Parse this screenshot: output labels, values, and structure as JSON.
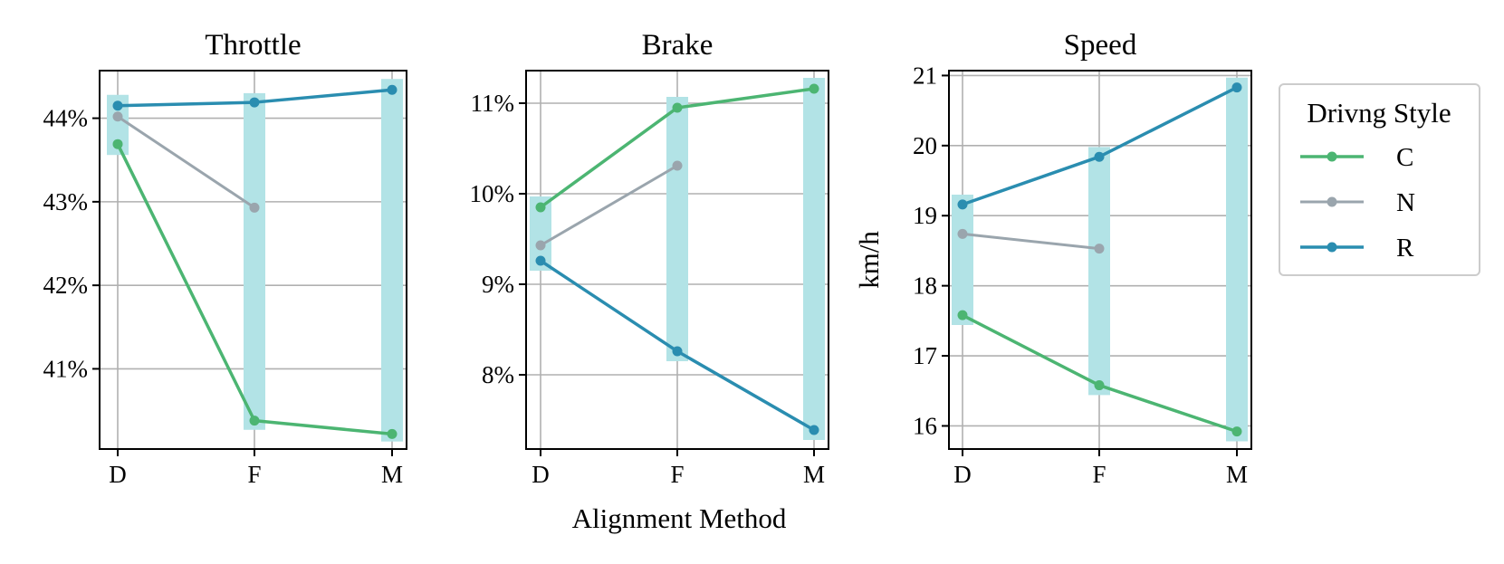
{
  "chart_data": {
    "type": "line",
    "xlabel": "Alignment Method",
    "categories": [
      "D",
      "F",
      "M"
    ],
    "legend": {
      "title": "Drivng Style",
      "placement": "right"
    },
    "series_colors": {
      "C": "#4cb572",
      "N": "#9aa5ad",
      "R": "#2a8db0"
    },
    "band_color": "#b2e3e6",
    "panels": [
      {
        "title": "Throttle",
        "ylabel": "",
        "ylim": [
          40.04,
          44.57
        ],
        "yticks": [
          41,
          42,
          43,
          44
        ],
        "ytick_labels": [
          "41%",
          "42%",
          "43%",
          "44%"
        ],
        "series": [
          {
            "name": "C",
            "values": [
              43.69,
              40.38,
              40.22
            ]
          },
          {
            "name": "N",
            "values": [
              44.02,
              42.93,
              null
            ]
          },
          {
            "name": "R",
            "values": [
              44.15,
              44.19,
              44.34
            ]
          }
        ],
        "bands": [
          [
            43.56,
            44.28
          ],
          [
            40.27,
            44.3
          ],
          [
            40.13,
            44.47
          ]
        ]
      },
      {
        "title": "Brake",
        "ylabel": "",
        "ylim": [
          7.18,
          11.36
        ],
        "yticks": [
          8,
          9,
          10,
          11
        ],
        "ytick_labels": [
          "8%",
          "9%",
          "10%",
          "11%"
        ],
        "series": [
          {
            "name": "C",
            "values": [
              9.85,
              10.95,
              11.16
            ]
          },
          {
            "name": "N",
            "values": [
              9.43,
              10.31,
              null
            ]
          },
          {
            "name": "R",
            "values": [
              9.26,
              8.26,
              7.39
            ]
          }
        ],
        "bands": [
          [
            9.15,
            9.97
          ],
          [
            8.15,
            11.07
          ],
          [
            7.28,
            11.28
          ]
        ]
      },
      {
        "title": "Speed",
        "ylabel": "km/h",
        "ylim": [
          15.67,
          21.07
        ],
        "yticks": [
          16,
          17,
          18,
          19,
          20,
          21
        ],
        "ytick_labels": [
          "16",
          "17",
          "18",
          "19",
          "20",
          "21"
        ],
        "series": [
          {
            "name": "C",
            "values": [
              17.58,
              16.58,
              15.92
            ]
          },
          {
            "name": "N",
            "values": [
              18.74,
              18.53,
              null
            ]
          },
          {
            "name": "R",
            "values": [
              19.16,
              19.84,
              20.83
            ]
          }
        ],
        "bands": [
          [
            17.44,
            19.3
          ],
          [
            16.44,
            19.98
          ],
          [
            15.78,
            20.97
          ]
        ]
      }
    ]
  }
}
